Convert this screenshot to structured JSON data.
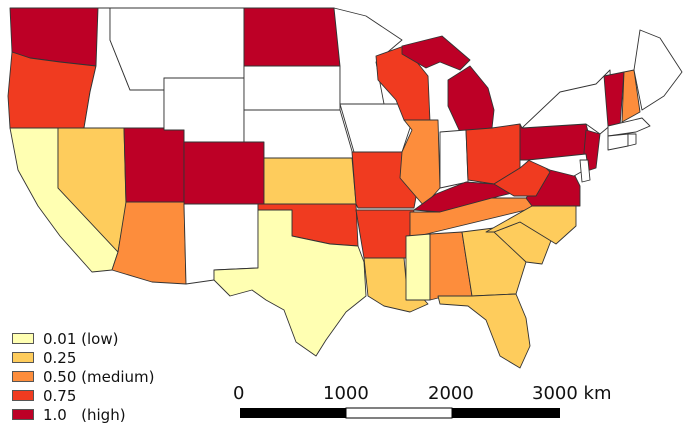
{
  "colors": {
    "low": "#ffffb2",
    "v025": "#fecc5c",
    "medium": "#fd8d3c",
    "v075": "#f03b20",
    "high": "#bd0026",
    "nodata": "#ffffff",
    "border": "#333333"
  },
  "legend": {
    "items": [
      {
        "label": "0.01 (low)",
        "color_key": "low"
      },
      {
        "label": "0.25",
        "color_key": "v025"
      },
      {
        "label": "0.50 (medium)",
        "color_key": "medium"
      },
      {
        "label": "0.75",
        "color_key": "v075"
      },
      {
        "label": "1.0   (high)",
        "color_key": "high"
      }
    ]
  },
  "scale_bar": {
    "labels": [
      "0",
      "1000",
      "2000",
      "3000 km"
    ]
  },
  "states": [
    {
      "name": "WA",
      "level": "high"
    },
    {
      "name": "OR",
      "level": "v075"
    },
    {
      "name": "CA",
      "level": "low"
    },
    {
      "name": "NV",
      "level": "v025"
    },
    {
      "name": "ID",
      "level": "nodata"
    },
    {
      "name": "MT",
      "level": "nodata"
    },
    {
      "name": "WY",
      "level": "nodata"
    },
    {
      "name": "UT",
      "level": "high"
    },
    {
      "name": "CO",
      "level": "high"
    },
    {
      "name": "AZ",
      "level": "medium"
    },
    {
      "name": "NM",
      "level": "nodata"
    },
    {
      "name": "ND",
      "level": "high"
    },
    {
      "name": "SD",
      "level": "nodata"
    },
    {
      "name": "NE",
      "level": "nodata"
    },
    {
      "name": "KS",
      "level": "v025"
    },
    {
      "name": "OK",
      "level": "v075"
    },
    {
      "name": "TX",
      "level": "low"
    },
    {
      "name": "MN",
      "level": "nodata"
    },
    {
      "name": "IA",
      "level": "nodata"
    },
    {
      "name": "MO",
      "level": "v075"
    },
    {
      "name": "AR",
      "level": "v075"
    },
    {
      "name": "LA",
      "level": "v025"
    },
    {
      "name": "WI",
      "level": "v075"
    },
    {
      "name": "IL",
      "level": "medium"
    },
    {
      "name": "MI",
      "level": "high"
    },
    {
      "name": "IN",
      "level": "nodata"
    },
    {
      "name": "OH",
      "level": "v075"
    },
    {
      "name": "KY",
      "level": "high"
    },
    {
      "name": "TN",
      "level": "medium"
    },
    {
      "name": "MS",
      "level": "low"
    },
    {
      "name": "AL",
      "level": "medium"
    },
    {
      "name": "GA",
      "level": "v025"
    },
    {
      "name": "FL",
      "level": "v025"
    },
    {
      "name": "SC",
      "level": "v025"
    },
    {
      "name": "NC",
      "level": "v025"
    },
    {
      "name": "VA",
      "level": "high"
    },
    {
      "name": "WV",
      "level": "v075"
    },
    {
      "name": "PA",
      "level": "high"
    },
    {
      "name": "NY",
      "level": "nodata"
    },
    {
      "name": "NJ",
      "level": "high"
    },
    {
      "name": "DE",
      "level": "nodata"
    },
    {
      "name": "MD",
      "level": "nodata"
    },
    {
      "name": "VT",
      "level": "high"
    },
    {
      "name": "NH",
      "level": "medium"
    },
    {
      "name": "ME",
      "level": "nodata"
    },
    {
      "name": "MA",
      "level": "nodata"
    },
    {
      "name": "CT",
      "level": "nodata"
    },
    {
      "name": "RI",
      "level": "nodata"
    }
  ]
}
